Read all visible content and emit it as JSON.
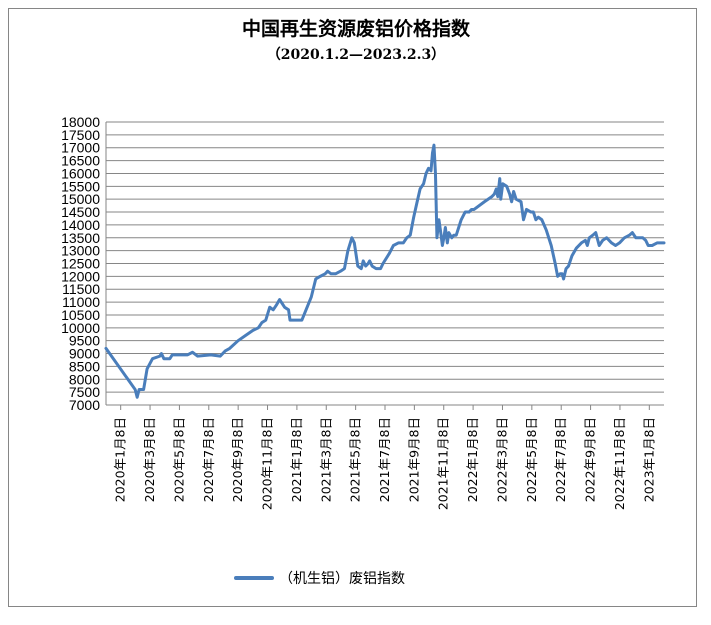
{
  "chart_data": {
    "type": "line",
    "title": "中国再生资源废铝价格指数",
    "subtitle": "（2020.1.2—2023.2.3）",
    "ylim": [
      7000,
      18000
    ],
    "yticks": [
      "7000",
      "7500",
      "8000",
      "8500",
      "9000",
      "9500",
      "10000",
      "10500",
      "11000",
      "11500",
      "12000",
      "12500",
      "13000",
      "13500",
      "14000",
      "14500",
      "15000",
      "15500",
      "16000",
      "16500",
      "17000",
      "17500",
      "18000"
    ],
    "xticks": [
      "2020年1月8日",
      "2020年3月8日",
      "2020年5月8日",
      "2020年7月8日",
      "2020年9月8日",
      "2020年11月8日",
      "2021年1月8日",
      "2021年3月8日",
      "2021年5月8日",
      "2021年7月8日",
      "2021年9月8日",
      "2021年11月8日",
      "2022年1月8日",
      "2022年3月8日",
      "2022年5月8日",
      "2022年7月8日",
      "2022年9月8日",
      "2022年11月8日",
      "2023年1月8日"
    ],
    "grid": true,
    "legend": "bottom",
    "series": [
      {
        "name": "（机生铝）废铝指数",
        "color": "#4a7ebb",
        "points": [
          [
            "2020-01-02",
            9200
          ],
          [
            "2020-03-01",
            7600
          ],
          [
            "2020-03-05",
            7300
          ],
          [
            "2020-03-09",
            7600
          ],
          [
            "2020-03-18",
            7600
          ],
          [
            "2020-03-25",
            8400
          ],
          [
            "2020-04-05",
            8800
          ],
          [
            "2020-04-20",
            8900
          ],
          [
            "2020-04-23",
            9000
          ],
          [
            "2020-04-28",
            8800
          ],
          [
            "2020-05-10",
            8800
          ],
          [
            "2020-05-15",
            8950
          ],
          [
            "2020-06-15",
            8950
          ],
          [
            "2020-06-25",
            9050
          ],
          [
            "2020-07-05",
            8900
          ],
          [
            "2020-08-01",
            8950
          ],
          [
            "2020-08-20",
            8900
          ],
          [
            "2020-08-30",
            9100
          ],
          [
            "2020-09-08",
            9200
          ],
          [
            "2020-09-25",
            9500
          ],
          [
            "2020-10-10",
            9700
          ],
          [
            "2020-10-25",
            9900
          ],
          [
            "2020-11-05",
            10000
          ],
          [
            "2020-11-12",
            10200
          ],
          [
            "2020-11-20",
            10300
          ],
          [
            "2020-11-28",
            10800
          ],
          [
            "2020-12-05",
            10700
          ],
          [
            "2020-12-12",
            10900
          ],
          [
            "2020-12-18",
            11100
          ],
          [
            "2020-12-28",
            10800
          ],
          [
            "2021-01-05",
            10700
          ],
          [
            "2021-01-08",
            10300
          ],
          [
            "2021-01-15",
            10300
          ],
          [
            "2021-02-01",
            10300
          ],
          [
            "2021-02-20",
            11200
          ],
          [
            "2021-03-01",
            11900
          ],
          [
            "2021-03-10",
            12000
          ],
          [
            "2021-03-20",
            12100
          ],
          [
            "2021-03-25",
            12200
          ],
          [
            "2021-04-01",
            12100
          ],
          [
            "2021-04-10",
            12100
          ],
          [
            "2021-04-20",
            12200
          ],
          [
            "2021-04-28",
            12300
          ],
          [
            "2021-05-05",
            13000
          ],
          [
            "2021-05-13",
            13500
          ],
          [
            "2021-05-18",
            13300
          ],
          [
            "2021-05-25",
            12400
          ],
          [
            "2021-06-01",
            12300
          ],
          [
            "2021-06-05",
            12600
          ],
          [
            "2021-06-10",
            12400
          ],
          [
            "2021-06-15",
            12500
          ],
          [
            "2021-06-18",
            12600
          ],
          [
            "2021-06-23",
            12400
          ],
          [
            "2021-07-01",
            12300
          ],
          [
            "2021-07-10",
            12300
          ],
          [
            "2021-07-15",
            12500
          ],
          [
            "2021-07-28",
            12900
          ],
          [
            "2021-08-05",
            13200
          ],
          [
            "2021-08-15",
            13300
          ],
          [
            "2021-08-25",
            13300
          ],
          [
            "2021-09-01",
            13500
          ],
          [
            "2021-09-08",
            13600
          ],
          [
            "2021-09-15",
            14300
          ],
          [
            "2021-09-22",
            14900
          ],
          [
            "2021-09-28",
            15400
          ],
          [
            "2021-10-05",
            15600
          ],
          [
            "2021-10-10",
            16000
          ],
          [
            "2021-10-15",
            16200
          ],
          [
            "2021-10-20",
            16100
          ],
          [
            "2021-10-23",
            16800
          ],
          [
            "2021-10-26",
            17100
          ],
          [
            "2021-10-29",
            16000
          ],
          [
            "2021-11-01",
            13500
          ],
          [
            "2021-11-05",
            14200
          ],
          [
            "2021-11-08",
            13800
          ],
          [
            "2021-11-12",
            13200
          ],
          [
            "2021-11-15",
            13500
          ],
          [
            "2021-11-18",
            13900
          ],
          [
            "2021-11-22",
            13300
          ],
          [
            "2021-11-25",
            13700
          ],
          [
            "2021-12-01",
            13500
          ],
          [
            "2021-12-05",
            13600
          ],
          [
            "2021-12-10",
            13600
          ],
          [
            "2021-12-20",
            14200
          ],
          [
            "2021-12-28",
            14500
          ],
          [
            "2022-01-05",
            14500
          ],
          [
            "2022-01-10",
            14600
          ],
          [
            "2022-01-15",
            14600
          ],
          [
            "2022-02-05",
            14900
          ],
          [
            "2022-02-20",
            15100
          ],
          [
            "2022-02-25",
            15200
          ],
          [
            "2022-03-01",
            15400
          ],
          [
            "2022-03-04",
            15100
          ],
          [
            "2022-03-08",
            15800
          ],
          [
            "2022-03-10",
            15000
          ],
          [
            "2022-03-14",
            15600
          ],
          [
            "2022-03-22",
            15500
          ],
          [
            "2022-03-28",
            15200
          ],
          [
            "2022-04-01",
            14900
          ],
          [
            "2022-04-05",
            15300
          ],
          [
            "2022-04-10",
            15000
          ],
          [
            "2022-04-20",
            14900
          ],
          [
            "2022-04-25",
            14200
          ],
          [
            "2022-05-01",
            14600
          ],
          [
            "2022-05-10",
            14500
          ],
          [
            "2022-05-15",
            14500
          ],
          [
            "2022-05-20",
            14200
          ],
          [
            "2022-05-25",
            14300
          ],
          [
            "2022-06-01",
            14200
          ],
          [
            "2022-06-10",
            13800
          ],
          [
            "2022-06-20",
            13200
          ],
          [
            "2022-06-28",
            12500
          ],
          [
            "2022-07-03",
            12000
          ],
          [
            "2022-07-08",
            12100
          ],
          [
            "2022-07-12",
            12100
          ],
          [
            "2022-07-15",
            11900
          ],
          [
            "2022-07-20",
            12300
          ],
          [
            "2022-07-25",
            12400
          ],
          [
            "2022-08-01",
            12800
          ],
          [
            "2022-08-10",
            13100
          ],
          [
            "2022-08-20",
            13300
          ],
          [
            "2022-08-28",
            13400
          ],
          [
            "2022-09-01",
            13200
          ],
          [
            "2022-09-05",
            13500
          ],
          [
            "2022-09-12",
            13600
          ],
          [
            "2022-09-18",
            13700
          ],
          [
            "2022-09-25",
            13200
          ],
          [
            "2022-10-02",
            13400
          ],
          [
            "2022-10-10",
            13500
          ],
          [
            "2022-10-20",
            13300
          ],
          [
            "2022-10-28",
            13200
          ],
          [
            "2022-11-05",
            13300
          ],
          [
            "2022-11-15",
            13500
          ],
          [
            "2022-11-25",
            13600
          ],
          [
            "2022-12-01",
            13700
          ],
          [
            "2022-12-08",
            13500
          ],
          [
            "2022-12-15",
            13500
          ],
          [
            "2022-12-22",
            13500
          ],
          [
            "2022-12-28",
            13400
          ],
          [
            "2023-01-02",
            13200
          ],
          [
            "2023-01-10",
            13200
          ],
          [
            "2023-01-20",
            13300
          ],
          [
            "2023-02-03",
            13300
          ]
        ]
      }
    ]
  }
}
